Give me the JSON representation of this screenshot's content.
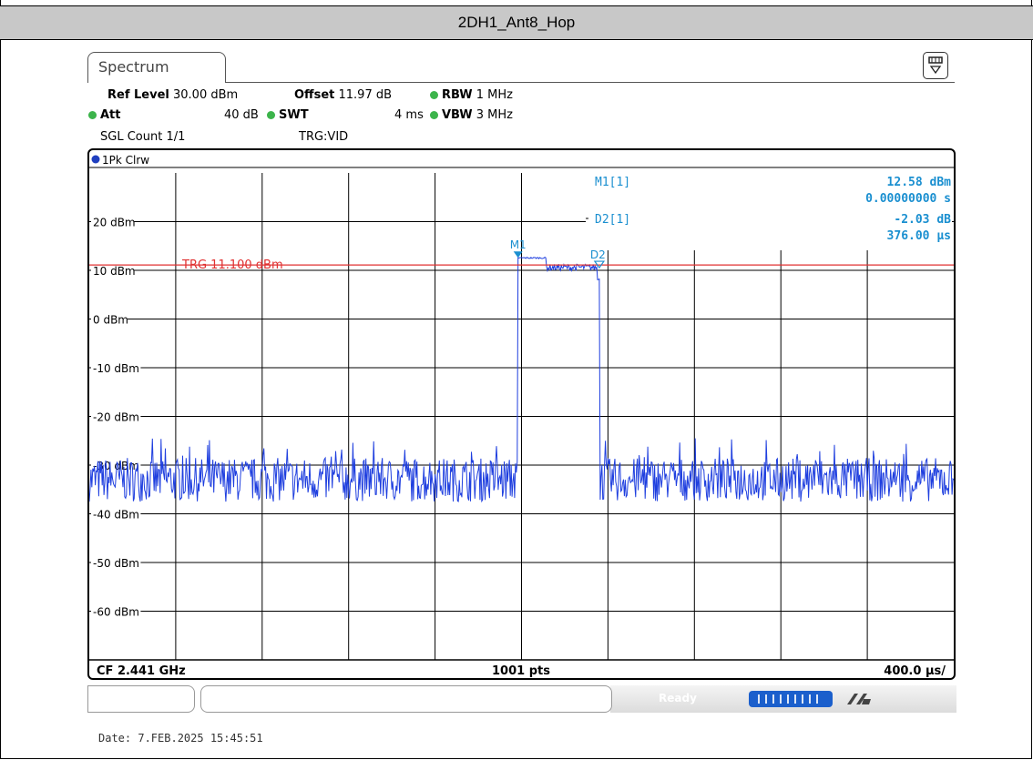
{
  "window": {
    "title": "2DH1_Ant8_Hop"
  },
  "tab": {
    "label": "Spectrum"
  },
  "settings": {
    "ref_level_label": "Ref Level",
    "ref_level_value": "30.00 dBm",
    "offset_label": "Offset",
    "offset_value": "11.97 dB",
    "rbw_label": "RBW",
    "rbw_value": "1 MHz",
    "att_label": "Att",
    "att_value": "40 dB",
    "swt_label": "SWT",
    "swt_value": "4 ms",
    "vbw_label": "VBW",
    "vbw_value": "3 MHz",
    "sgl_count": "SGL Count 1/1",
    "trg": "TRG:VID"
  },
  "trace": {
    "label": "1Pk Clrw"
  },
  "markers": {
    "m1_label": "M1[1]",
    "m1_value": "12.58 dBm",
    "m1_time": "0.00000000 s",
    "d2_label": "D2[1]",
    "d2_value": "-2.03 dB",
    "d2_time": "376.00 µs",
    "m1_tag": "M1",
    "d2_tag": "D2"
  },
  "trigger": {
    "label": "TRG  11.100 dBm"
  },
  "footer": {
    "cf": "CF 2.441 GHz",
    "pts": "1001 pts",
    "span": "400.0 µs/"
  },
  "status": {
    "ready": "Ready",
    "progress": 1.0
  },
  "date": "Date: 7.FEB.2025  15:45:51",
  "colors": {
    "trace": "#1f3fdf",
    "trigger": "#e03030",
    "marker_text": "#1a8fd0"
  },
  "chart_data": {
    "type": "line",
    "title": "",
    "xlabel": "",
    "ylabel": "",
    "ylim": [
      -70,
      30
    ],
    "xlim": [
      0,
      4000
    ],
    "x_unit": "µs",
    "y_ticks": [
      {
        "value": 20,
        "label": "20 dBm"
      },
      {
        "value": 10,
        "label": "10 dBm"
      },
      {
        "value": 0,
        "label": "0 dBm"
      },
      {
        "value": -10,
        "label": "-10 dBm"
      },
      {
        "value": -20,
        "label": "-20 dBm"
      },
      {
        "value": -30,
        "label": "-30 dBm"
      },
      {
        "value": -40,
        "label": "-40 dBm"
      },
      {
        "value": -50,
        "label": "-50 dBm"
      },
      {
        "value": -60,
        "label": "-60 dBm"
      }
    ],
    "grid": true,
    "trigger_level": 11.1,
    "noise_floor": -33,
    "burst": {
      "start": 1984,
      "end": 2360,
      "level": 11.5
    },
    "markers": [
      {
        "name": "M1",
        "x": 1984,
        "y": 12.58
      },
      {
        "name": "D2",
        "x": 2360,
        "y": 10.55
      }
    ]
  }
}
